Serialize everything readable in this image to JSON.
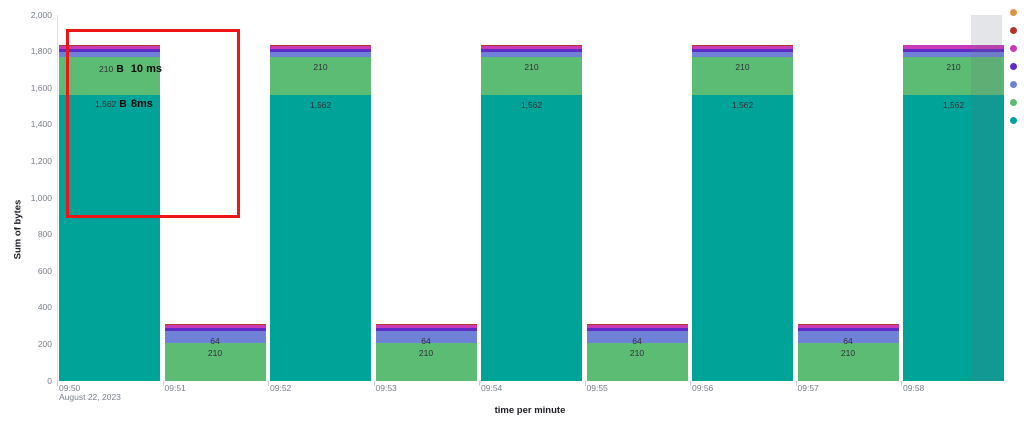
{
  "axes": {
    "y_title": "Sum of bytes",
    "x_title": "time per minute",
    "x_sub_label": "August 22, 2023"
  },
  "chart_data": {
    "type": "bar",
    "stacked": true,
    "title": "",
    "xlabel": "time per minute",
    "ylabel": "Sum of bytes",
    "ylim": [
      0,
      2000
    ],
    "y_tick_step": 200,
    "y_tick_labels": [
      "0",
      "200",
      "400",
      "600",
      "800",
      "1,000",
      "1,200",
      "1,400",
      "1,600",
      "1,800",
      "2,000"
    ],
    "grid": false,
    "legend_position": "right",
    "categories": [
      "09:50",
      "09:51",
      "09:52",
      "09:53",
      "09:54",
      "09:55",
      "09:56",
      "09:57",
      "09:58"
    ],
    "series": [
      {
        "name": "teal",
        "color": "#00A398",
        "values": [
          1562,
          0,
          1562,
          0,
          1562,
          0,
          1562,
          0,
          1562
        ]
      },
      {
        "name": "green",
        "color": "#5CBC74",
        "values": [
          210,
          210,
          210,
          210,
          210,
          210,
          210,
          210,
          210
        ]
      },
      {
        "name": "blue",
        "color": "#7081D8",
        "values": [
          24,
          64,
          24,
          64,
          24,
          64,
          24,
          64,
          24
        ]
      },
      {
        "name": "purple",
        "color": "#5E2BC6",
        "values": [
          16,
          16,
          16,
          16,
          16,
          16,
          16,
          16,
          16
        ]
      },
      {
        "name": "magenta",
        "color": "#C93AB6",
        "values": [
          16,
          16,
          16,
          16,
          16,
          16,
          16,
          16,
          22
        ]
      },
      {
        "name": "dark-red",
        "color": "#B5342C",
        "values": [
          8,
          8,
          8,
          8,
          8,
          8,
          8,
          8,
          0
        ]
      },
      {
        "name": "orange",
        "color": "#DB9542",
        "values": [
          0,
          0,
          0,
          0,
          0,
          0,
          0,
          0,
          0
        ]
      }
    ],
    "visible_bar_labels": {
      "big_bars": [
        "1,562",
        "210"
      ],
      "small_bars": [
        "210",
        "64"
      ]
    }
  },
  "annotations": {
    "box_color": "#ED1515",
    "first_bar_labels": [
      {
        "value": "210",
        "unit": "B",
        "note": "10 ms"
      },
      {
        "value": "1,562",
        "unit": "B",
        "note": "8ms"
      }
    ]
  },
  "hover_band_color": "rgba(105,112,125,0.18)"
}
